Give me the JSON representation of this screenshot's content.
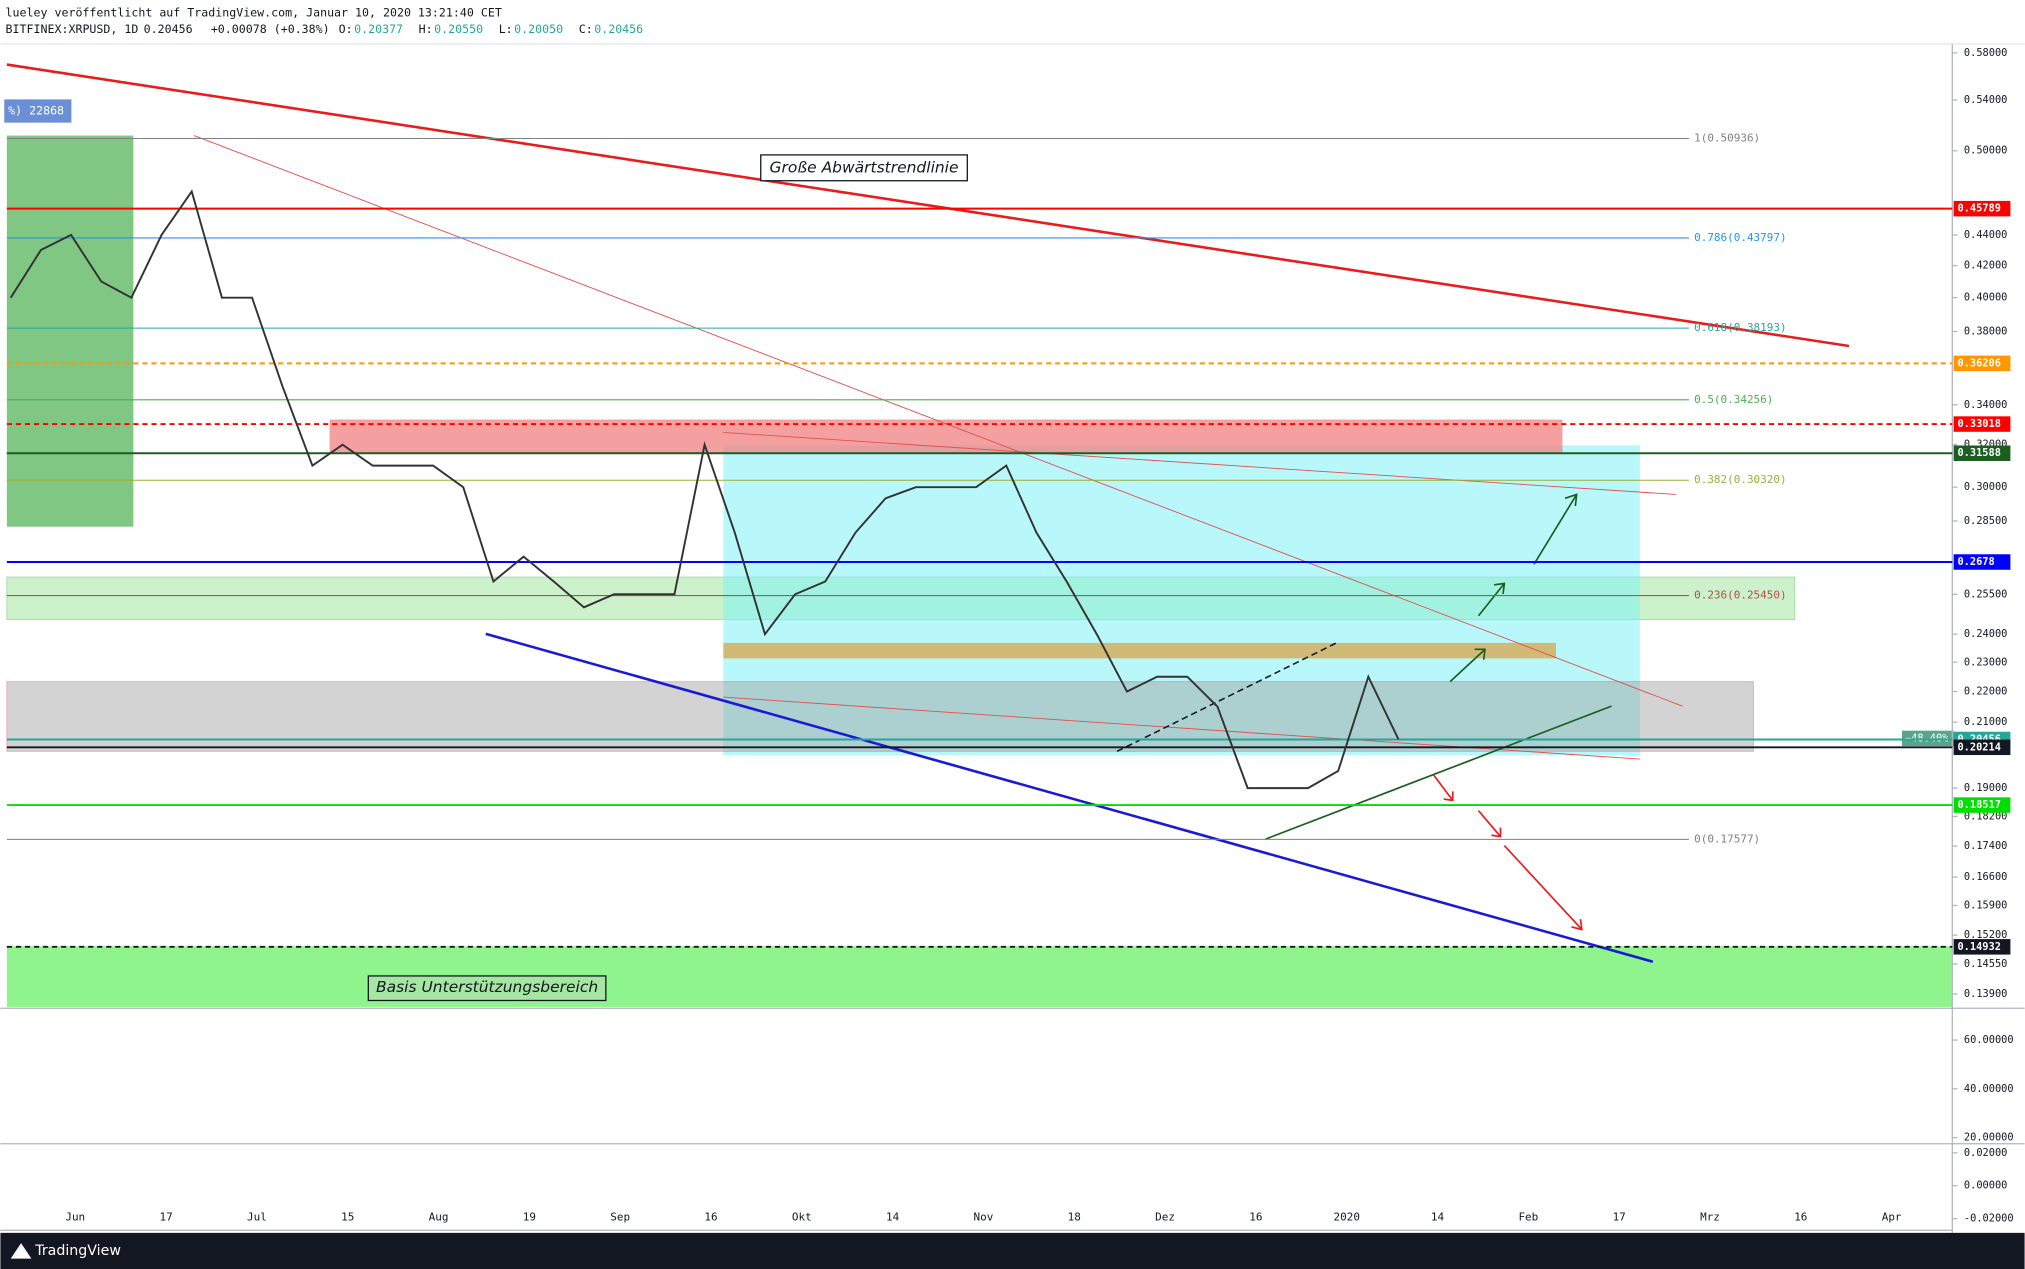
{
  "header": {
    "publisher": "lueley veröffentlicht auf TradingView.com, Januar 10, 2020 13:21:40 CET",
    "symbol": "BITFINEX:XRPUSD, 1D",
    "last": "0.20456",
    "change": "+0.00078 (+0.38%)",
    "ohlc": [
      {
        "label": "O:",
        "value": "0.20377"
      },
      {
        "label": "H:",
        "value": "0.20550"
      },
      {
        "label": "L:",
        "value": "0.20050"
      },
      {
        "label": "C:",
        "value": "0.20456"
      }
    ]
  },
  "chart_data": {
    "type": "line",
    "log": true,
    "ylim": [
      0.1363,
      0.588
    ],
    "yticks": [
      {
        "value": 0.58,
        "label": "0.58000"
      },
      {
        "value": 0.54,
        "label": "0.54000"
      },
      {
        "value": 0.5,
        "label": "0.50000"
      },
      {
        "value": 0.44,
        "label": "0.44000"
      },
      {
        "value": 0.42,
        "label": "0.42000"
      },
      {
        "value": 0.4,
        "label": "0.40000"
      },
      {
        "value": 0.38,
        "label": "0.38000"
      },
      {
        "value": 0.34,
        "label": "0.34000"
      },
      {
        "value": 0.32,
        "label": "0.32000"
      },
      {
        "value": 0.3,
        "label": "0.30000"
      },
      {
        "value": 0.285,
        "label": "0.28500"
      },
      {
        "value": 0.255,
        "label": "0.25500"
      },
      {
        "value": 0.24,
        "label": "0.24000"
      },
      {
        "value": 0.23,
        "label": "0.23000"
      },
      {
        "value": 0.22,
        "label": "0.22000"
      },
      {
        "value": 0.21,
        "label": "0.21000"
      },
      {
        "value": 0.19,
        "label": "0.19000"
      },
      {
        "value": 0.182,
        "label": "0.18200"
      },
      {
        "value": 0.174,
        "label": "0.17400"
      },
      {
        "value": 0.166,
        "label": "0.16600"
      },
      {
        "value": 0.159,
        "label": "0.15900"
      },
      {
        "value": 0.152,
        "label": "0.15200"
      },
      {
        "value": 0.1455,
        "label": "0.14550"
      },
      {
        "value": 0.139,
        "label": "0.13900"
      }
    ],
    "xticks": [
      "Jun",
      "17",
      "Jul",
      "15",
      "Aug",
      "19",
      "Sep",
      "16",
      "Okt",
      "14",
      "Nov",
      "18",
      "Dez",
      "16",
      "2020",
      "14",
      "Feb",
      "17",
      "Mrz",
      "16",
      "Apr"
    ],
    "color": "#333333",
    "values": [
      0.4,
      0.43,
      0.44,
      0.41,
      0.4,
      0.44,
      0.47,
      0.4,
      0.4,
      0.35,
      0.31,
      0.32,
      0.31,
      0.31,
      0.31,
      0.3,
      0.26,
      0.27,
      0.26,
      0.25,
      0.255,
      0.255,
      0.255,
      0.32,
      0.28,
      0.24,
      0.255,
      0.26,
      0.28,
      0.295,
      0.3,
      0.3,
      0.3,
      0.31,
      0.28,
      0.26,
      0.24,
      0.22,
      0.225,
      0.225,
      0.215,
      0.19,
      0.19,
      0.19,
      0.195,
      0.225,
      0.2046
    ],
    "levels": [
      {
        "value": 0.45789,
        "color": "#ff0000"
      },
      {
        "value": 0.36206,
        "color": "#ff9800"
      },
      {
        "value": 0.33018,
        "color": "#ff0000"
      },
      {
        "value": 0.31588,
        "color": "#1b5e20"
      },
      {
        "value": 0.2678,
        "color": "#0000ff"
      },
      {
        "value": 0.20456,
        "color": "#26a69a"
      },
      {
        "value": 0.20214,
        "color": "#131722"
      },
      {
        "value": 0.18517,
        "color": "#00e000"
      },
      {
        "value": 0.14932,
        "color": "#131722"
      }
    ],
    "fib_levels": [
      {
        "label": "1(0.50936)",
        "value": 0.50936,
        "color": "#808080"
      },
      {
        "label": "0.786(0.43797)",
        "value": 0.43797,
        "color": "#2196f3"
      },
      {
        "label": "0.618(0.38193)",
        "value": 0.38193,
        "color": "#26a69a"
      },
      {
        "label": "0.5(0.34256)",
        "value": 0.34256,
        "color": "#4caf50"
      },
      {
        "label": "0.382(0.30320)",
        "value": 0.3032,
        "color": "#9bae3a"
      },
      {
        "label": "0.236(0.25450)",
        "value": 0.2545,
        "color": "#b05050"
      },
      {
        "label": "0(0.17577)",
        "value": 0.17577,
        "color": "#808080"
      }
    ],
    "annotations": [
      "Große Abwärtstrendlinie",
      "Basis Unterstützungsbereich"
    ],
    "volume_label": "%) 22868",
    "change_label": "−48.40%"
  },
  "rsi": {
    "ylim": [
      18,
      72
    ],
    "yticks": [
      {
        "value": 60,
        "label": "60.00000"
      },
      {
        "value": 40,
        "label": "40.00000"
      },
      {
        "value": 20,
        "label": "20.00000"
      }
    ]
  },
  "macd": {
    "ylim": [
      -0.0263,
      0.0247
    ],
    "yticks": [
      {
        "value": 0.02,
        "label": "0.02000"
      },
      {
        "value": 0,
        "label": "0.00000"
      },
      {
        "value": -0.02,
        "label": "-0.02000"
      }
    ]
  },
  "footer": "TradingView"
}
